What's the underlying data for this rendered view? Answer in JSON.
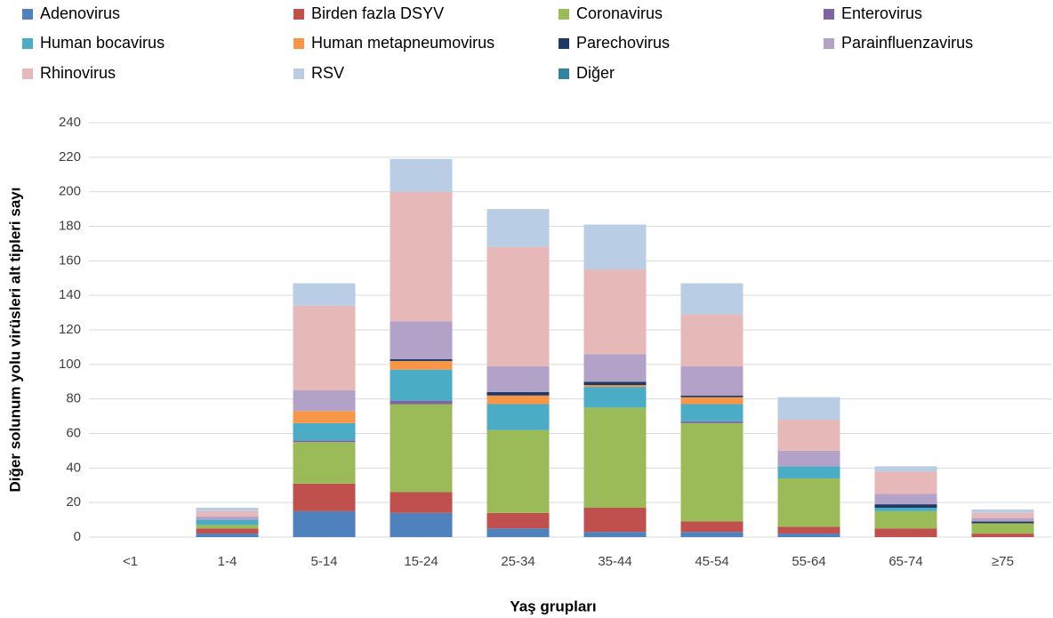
{
  "chart_data": {
    "type": "stacked-bar",
    "x_label": "Yaş grupları",
    "y_label": "Diğer solunum yolu virüsleri alt tipleri sayı",
    "categories": [
      "<1",
      "1-4",
      "5-14",
      "15-24",
      "25-34",
      "35-44",
      "45-54",
      "55-64",
      "65-74",
      "≥75"
    ],
    "ylim": [
      0,
      240
    ],
    "yticks": [
      0,
      20,
      40,
      60,
      80,
      100,
      120,
      140,
      160,
      180,
      200,
      220,
      240
    ],
    "grid": true,
    "series": [
      {
        "name": "Adenovirus",
        "color": "#4f81bd",
        "values": [
          0,
          2,
          15,
          14,
          5,
          3,
          3,
          2,
          0,
          0
        ]
      },
      {
        "name": "Birden fazla DSYV",
        "color": "#c0504d",
        "values": [
          0,
          3,
          16,
          12,
          9,
          14,
          6,
          4,
          5,
          2
        ]
      },
      {
        "name": "Coronavirus",
        "color": "#9bbb59",
        "values": [
          0,
          2,
          24,
          51,
          48,
          58,
          57,
          28,
          10,
          6
        ]
      },
      {
        "name": "Enterovirus",
        "color": "#8064a2",
        "values": [
          0,
          0,
          1,
          2,
          0,
          0,
          1,
          0,
          0,
          0
        ]
      },
      {
        "name": "Human bocavirus",
        "color": "#4bacc6",
        "values": [
          0,
          3,
          10,
          18,
          15,
          12,
          10,
          7,
          2,
          0
        ]
      },
      {
        "name": "Human metapneumovirus",
        "color": "#f79646",
        "values": [
          0,
          0,
          7,
          5,
          5,
          1,
          4,
          0,
          0,
          0
        ]
      },
      {
        "name": "Parechovirus",
        "color": "#1f3864",
        "values": [
          0,
          0,
          0,
          1,
          2,
          2,
          1,
          0,
          2,
          1
        ]
      },
      {
        "name": "Parainfluenzavirus",
        "color": "#b3a2c7",
        "values": [
          0,
          2,
          12,
          22,
          15,
          16,
          17,
          9,
          6,
          2
        ]
      },
      {
        "name": "Rhinovirus",
        "color": "#e6b9b8",
        "values": [
          0,
          3,
          49,
          75,
          69,
          49,
          30,
          18,
          13,
          3
        ]
      },
      {
        "name": "RSV",
        "color": "#b9cde5",
        "values": [
          0,
          2,
          13,
          19,
          22,
          26,
          18,
          13,
          3,
          2
        ]
      },
      {
        "name": "Diğer",
        "color": "#31859c",
        "values": [
          0,
          0,
          0,
          0,
          0,
          0,
          0,
          0,
          0,
          0
        ]
      }
    ]
  }
}
